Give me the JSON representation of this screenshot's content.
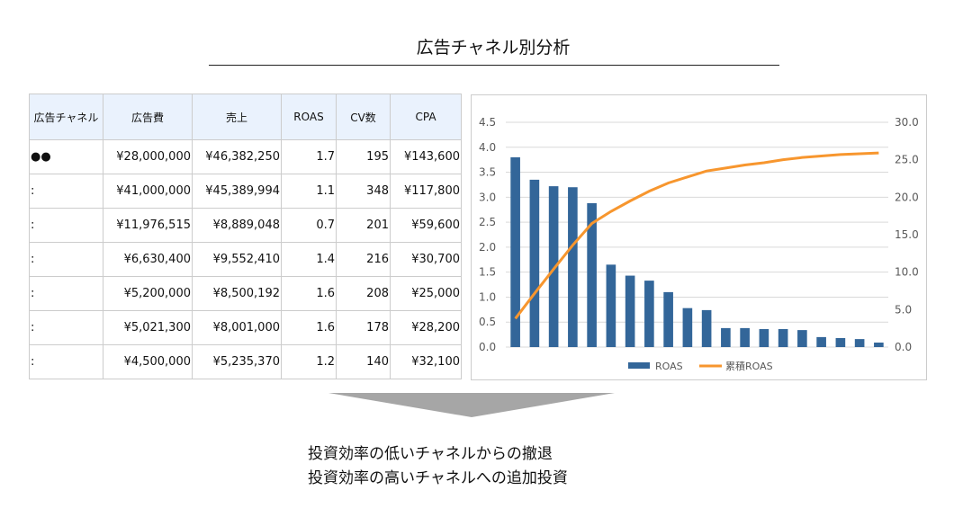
{
  "title": "広告チャネル別分析",
  "table": {
    "headers": [
      "広告チャネル",
      "広告費",
      "売上",
      "ROAS",
      "CV数",
      "CPA"
    ],
    "rows": [
      [
        "●●",
        "¥28,000,000",
        "¥46,382,250",
        "1.7",
        "195",
        "¥143,600"
      ],
      [
        ":",
        "¥41,000,000",
        "¥45,389,994",
        "1.1",
        "348",
        "¥117,800"
      ],
      [
        ":",
        "¥11,976,515",
        "¥8,889,048",
        "0.7",
        "201",
        "¥59,600"
      ],
      [
        ":",
        "¥6,630,400",
        "¥9,552,410",
        "1.4",
        "216",
        "¥30,700"
      ],
      [
        ":",
        "¥5,200,000",
        "¥8,500,192",
        "1.6",
        "208",
        "¥25,000"
      ],
      [
        ":",
        "¥5,021,300",
        "¥8,001,000",
        "1.6",
        "178",
        "¥28,200"
      ],
      [
        ":",
        "¥4,500,000",
        "¥5,235,370",
        "1.2",
        "140",
        "¥32,100"
      ]
    ]
  },
  "chart_data": {
    "type": "bar",
    "title": "",
    "series": [
      {
        "name": "ROAS",
        "type": "bar",
        "axis": "left",
        "color": "#336699",
        "values": [
          3.8,
          3.35,
          3.22,
          3.2,
          2.88,
          1.65,
          1.43,
          1.33,
          1.1,
          0.78,
          0.74,
          0.38,
          0.38,
          0.36,
          0.36,
          0.34,
          0.2,
          0.18,
          0.16,
          0.09
        ]
      },
      {
        "name": "累積ROAS",
        "type": "line",
        "axis": "right",
        "color": "#f7962e",
        "values": [
          3.8,
          7.15,
          10.4,
          13.6,
          16.5,
          18.1,
          19.5,
          20.8,
          21.9,
          22.7,
          23.5,
          23.9,
          24.3,
          24.6,
          25.0,
          25.3,
          25.5,
          25.7,
          25.8,
          25.9
        ]
      }
    ],
    "left_ticks": [
      "0.0",
      "0.5",
      "1.0",
      "1.5",
      "2.0",
      "2.5",
      "3.0",
      "3.5",
      "4.0",
      "4.5"
    ],
    "right_ticks": [
      "0.0",
      "5.0",
      "10.0",
      "15.0",
      "20.0",
      "25.0",
      "30.0"
    ],
    "ylim": [
      0,
      4.5
    ],
    "y2lim": [
      0,
      30
    ],
    "grid": true,
    "legend": "bottom"
  },
  "messages": [
    "投資効率の低いチャネルからの撤退",
    "投資効率の高いチャネルへの追加投資"
  ]
}
